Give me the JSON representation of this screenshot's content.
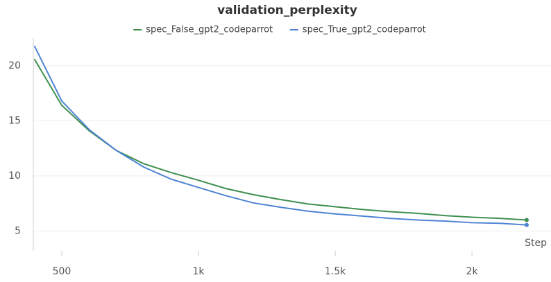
{
  "chart_data": {
    "type": "line",
    "title": "validation_perplexity",
    "xlabel": "Step",
    "x": [
      400,
      500,
      600,
      700,
      800,
      900,
      1000,
      1100,
      1200,
      1300,
      1400,
      1500,
      1600,
      1700,
      1800,
      1900,
      2000,
      2100,
      2200
    ],
    "series": [
      {
        "name": "spec_False_gpt2_codeparrot",
        "color": "#3f8f4f",
        "values": [
          20.6,
          16.4,
          14.1,
          12.3,
          11.1,
          10.3,
          9.6,
          8.85,
          8.3,
          7.85,
          7.45,
          7.2,
          6.95,
          6.75,
          6.6,
          6.4,
          6.25,
          6.15,
          6.0
        ]
      },
      {
        "name": "spec_True_gpt2_codeparrot",
        "color": "#4e83d4",
        "values": [
          21.8,
          16.8,
          14.2,
          12.3,
          10.8,
          9.7,
          8.95,
          8.2,
          7.55,
          7.15,
          6.8,
          6.55,
          6.35,
          6.15,
          6.0,
          5.9,
          5.75,
          5.7,
          5.55
        ]
      }
    ],
    "xlim": [
      396,
      2289
    ],
    "ylim": [
      3.2,
      22.5
    ],
    "xticks": [
      500,
      {
        "value": 1000,
        "label": "1k"
      },
      {
        "value": 1500,
        "label": "1.5k"
      },
      {
        "value": 2000,
        "label": "2k"
      }
    ],
    "yticks": [
      5,
      10,
      15,
      20
    ],
    "grid": true,
    "legend": "top"
  }
}
